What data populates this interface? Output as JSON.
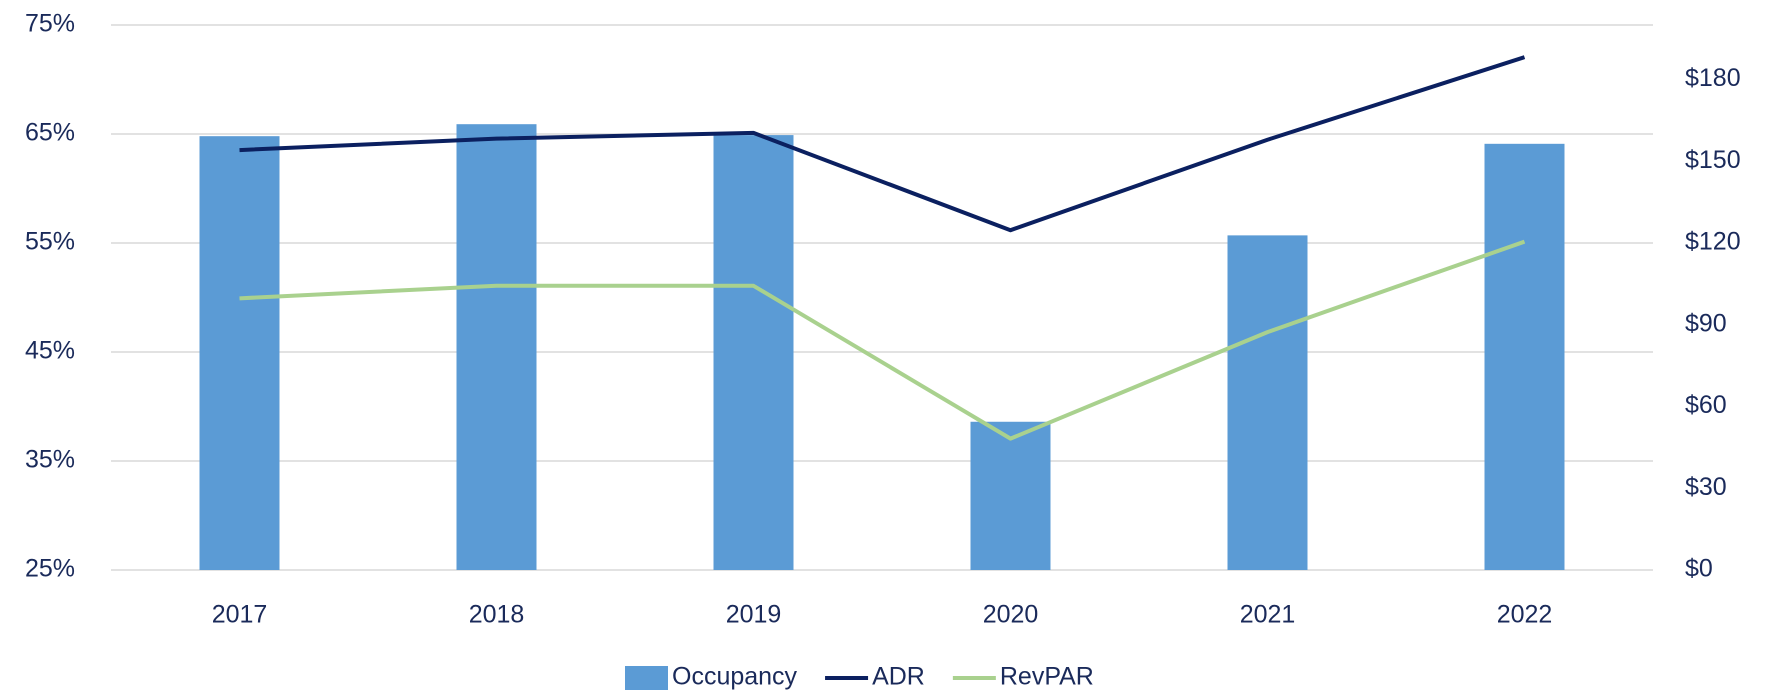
{
  "chart_data": {
    "type": "bar",
    "categories": [
      "2017",
      "2018",
      "2019",
      "2020",
      "2021",
      "2022"
    ],
    "series": [
      {
        "name": "Occupancy",
        "type": "bar",
        "color": "#5b9bd5",
        "values": [
          64.8,
          65.9,
          64.9,
          38.6,
          55.7,
          64.1
        ]
      },
      {
        "name": "ADR",
        "type": "line",
        "axis": "y2",
        "color": "#0b2060",
        "values": [
          154.1,
          158.3,
          160.4,
          124.7,
          157.9,
          188.2
        ]
      },
      {
        "name": "RevPAR",
        "type": "line",
        "axis": "y2",
        "color": "#a9d18e",
        "values": [
          99.7,
          104.3,
          104.3,
          48.2,
          87.3,
          120.5
        ]
      }
    ],
    "ylim": [
      25,
      75
    ],
    "yticks": [
      {
        "value": 25,
        "label": "25%"
      },
      {
        "value": 35,
        "label": "35%"
      },
      {
        "value": 45,
        "label": "45%"
      },
      {
        "value": 55,
        "label": "55%"
      },
      {
        "value": 65,
        "label": "65%"
      },
      {
        "value": 75,
        "label": "75%"
      }
    ],
    "y2lim": [
      0,
      200
    ],
    "y2ticks": [
      {
        "value": 0,
        "label": "$0"
      },
      {
        "value": 30,
        "label": "$30"
      },
      {
        "value": 60,
        "label": "$60"
      },
      {
        "value": 90,
        "label": "$90"
      },
      {
        "value": 120,
        "label": "$120"
      },
      {
        "value": 150,
        "label": "$150"
      },
      {
        "value": 180,
        "label": "$180"
      }
    ],
    "grid": true,
    "legend": "bottom"
  }
}
